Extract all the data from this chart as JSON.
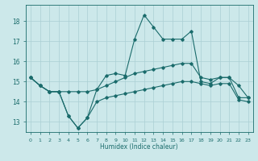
{
  "xlabel": "Humidex (Indice chaleur)",
  "bg_color": "#cce8ea",
  "grid_color": "#aacfd4",
  "line_color": "#1a6b6b",
  "xlim": [
    -0.5,
    23.5
  ],
  "ylim": [
    12.5,
    18.8
  ],
  "yticks": [
    13,
    14,
    15,
    16,
    17,
    18
  ],
  "xtick_labels": [
    "0",
    "1",
    "2",
    "3",
    "4",
    "5",
    "6",
    "7",
    "8",
    "9",
    "10",
    "11",
    "12",
    "13",
    "14",
    "15",
    "16",
    "17",
    "18",
    "19",
    "20",
    "21",
    "22",
    "23"
  ],
  "series": {
    "main": [
      15.2,
      14.8,
      14.5,
      14.5,
      13.3,
      12.7,
      13.2,
      14.6,
      15.3,
      15.4,
      15.3,
      17.1,
      18.3,
      17.7,
      17.1,
      17.1,
      17.1,
      17.5,
      15.0,
      14.9,
      15.2,
      15.2,
      14.2,
      14.2
    ],
    "low": [
      15.2,
      14.8,
      14.5,
      14.5,
      13.3,
      12.7,
      13.2,
      14.0,
      14.2,
      14.3,
      14.4,
      14.5,
      14.6,
      14.7,
      14.8,
      14.9,
      15.0,
      15.0,
      14.9,
      14.8,
      14.9,
      14.9,
      14.1,
      14.0
    ],
    "high": [
      15.2,
      14.8,
      14.5,
      14.5,
      14.5,
      14.5,
      14.5,
      14.6,
      14.8,
      15.0,
      15.2,
      15.4,
      15.5,
      15.6,
      15.7,
      15.8,
      15.9,
      15.9,
      15.2,
      15.1,
      15.2,
      15.2,
      14.8,
      14.2
    ]
  }
}
